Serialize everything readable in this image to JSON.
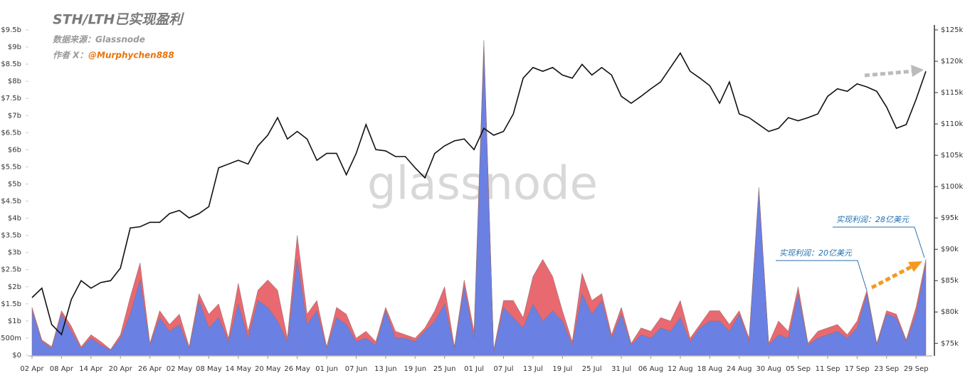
{
  "chart_data": {
    "type": "stacked-area-line",
    "title": "STH/LTH已实现盈利",
    "source": "数据来源：Glassnode",
    "author_label": "作者 X：",
    "author": "@Murphychen888",
    "watermark": "glassnode",
    "annotations": [
      "实现利润：20亿美元",
      "实现利润：28亿美元"
    ],
    "categories": [
      "02 Apr",
      null,
      null,
      "08 Apr",
      null,
      null,
      "14 Apr",
      null,
      null,
      "20 Apr",
      null,
      null,
      "26 Apr",
      null,
      null,
      "02 May",
      null,
      null,
      "08 May",
      null,
      null,
      "14 May",
      null,
      null,
      "20 May",
      null,
      null,
      "26 May",
      null,
      null,
      "01 Jun",
      null,
      null,
      "07 Jun",
      null,
      null,
      "13 Jun",
      null,
      null,
      "19 Jun",
      null,
      null,
      "25 Jun",
      null,
      null,
      "01 Jul",
      null,
      null,
      "07 Jul",
      null,
      null,
      "13 Jul",
      null,
      null,
      "19 Jul",
      null,
      null,
      "25 Jul",
      null,
      null,
      "31 Jul",
      null,
      null,
      "06 Aug",
      null,
      null,
      "12 Aug",
      null,
      null,
      "18 Aug",
      null,
      null,
      "24 Aug",
      null,
      null,
      "30 Aug",
      null,
      null,
      "05 Sep",
      null,
      null,
      "11 Sep",
      null,
      null,
      "17 Sep",
      null,
      null,
      "23 Sep",
      null,
      null,
      "29 Sep",
      null
    ],
    "series": [
      {
        "color": "#6b80e3",
        "values": [
          1.3,
          0.4,
          0.2,
          1.2,
          0.7,
          0.2,
          0.5,
          0.3,
          0.15,
          0.5,
          1.2,
          2.2,
          0.3,
          1.1,
          0.7,
          0.9,
          0.2,
          1.6,
          0.8,
          1.1,
          0.4,
          1.5,
          0.5,
          1.6,
          1.4,
          1.0,
          0.4,
          2.8,
          0.9,
          1.3,
          0.2,
          1.1,
          0.9,
          0.4,
          0.5,
          0.3,
          1.3,
          0.5,
          0.5,
          0.4,
          0.7,
          1.0,
          1.5,
          0.2,
          2.0,
          0.5,
          9.0,
          0.1,
          1.4,
          1.1,
          0.8,
          1.5,
          1.0,
          1.3,
          1.0,
          0.3,
          1.8,
          1.2,
          1.6,
          0.5,
          1.2,
          0.3,
          0.6,
          0.5,
          0.8,
          0.7,
          1.1,
          0.4,
          0.8,
          1.0,
          1.0,
          0.7,
          1.2,
          0.4,
          4.8,
          0.3,
          0.6,
          0.5,
          1.8,
          0.3,
          0.5,
          0.6,
          0.7,
          0.5,
          0.8,
          1.8,
          0.3,
          1.2,
          1.1,
          0.4,
          1.2,
          2.7
        ]
      },
      {
        "color": "#e8696f",
        "values": [
          0.1,
          0.05,
          0.05,
          0.1,
          0.15,
          0.05,
          0.1,
          0.1,
          0.02,
          0.1,
          0.5,
          0.5,
          0.05,
          0.2,
          0.2,
          0.3,
          0.05,
          0.2,
          0.4,
          0.4,
          0.1,
          0.6,
          0.2,
          0.3,
          0.8,
          0.9,
          0.1,
          0.7,
          0.3,
          0.3,
          0.05,
          0.3,
          0.3,
          0.1,
          0.2,
          0.1,
          0.1,
          0.2,
          0.1,
          0.1,
          0.1,
          0.3,
          0.5,
          0.05,
          0.2,
          0.2,
          0.2,
          0.05,
          0.2,
          0.5,
          0.3,
          0.8,
          1.8,
          1.0,
          0.3,
          0.1,
          0.6,
          0.4,
          0.2,
          0.1,
          0.2,
          0.05,
          0.2,
          0.2,
          0.3,
          0.3,
          0.5,
          0.1,
          0.1,
          0.3,
          0.3,
          0.2,
          0.1,
          0.1,
          0.1,
          0.05,
          0.4,
          0.2,
          0.2,
          0.05,
          0.2,
          0.2,
          0.2,
          0.1,
          0.2,
          0.1,
          0.05,
          0.1,
          0.1,
          0.05,
          0.2,
          0.1
        ]
      },
      {
        "color": "#111111",
        "axis": "y2",
        "values": [
          82.3,
          83.8,
          78,
          76.4,
          82,
          85,
          83.8,
          84.7,
          85,
          87,
          93.4,
          93.6,
          94.3,
          94.3,
          95.7,
          96.2,
          95,
          95.7,
          96.8,
          103,
          103.6,
          104.2,
          103.6,
          106.5,
          108.2,
          111,
          107.6,
          108.8,
          107.6,
          104.2,
          105.3,
          105.3,
          101.9,
          105.3,
          109.9,
          105.9,
          105.7,
          104.8,
          104.8,
          103,
          101.4,
          105.3,
          106.5,
          107.3,
          107.6,
          105.9,
          109.3,
          108.2,
          108.8,
          111.6,
          117.3,
          119,
          118.4,
          119,
          117.8,
          117.3,
          119.5,
          117.8,
          119,
          117.8,
          114.4,
          113.3,
          114.4,
          115.6,
          116.7,
          119,
          121.3,
          118.4,
          117.3,
          116.1,
          113.3,
          116.7,
          111.6,
          111,
          109.9,
          108.8,
          109.3,
          111,
          110.5,
          111,
          111.6,
          114.4,
          115.6,
          115.2,
          116.4,
          115.9,
          115.2,
          112.7,
          109.3,
          109.9,
          113.9,
          118.4
        ]
      }
    ],
    "ylim": [
      0,
      9.5
    ],
    "yticks": [
      {
        "value": 0,
        "label": "$0"
      },
      {
        "value": 0.5,
        "label": "$500m"
      },
      {
        "value": 1,
        "label": "$1b"
      },
      {
        "value": 1.5,
        "label": "$1.5b"
      },
      {
        "value": 2,
        "label": "$2b"
      },
      {
        "value": 2.5,
        "label": "$2.5b"
      },
      {
        "value": 3,
        "label": "$3b"
      },
      {
        "value": 3.5,
        "label": "$3.5b"
      },
      {
        "value": 4,
        "label": "$4b"
      },
      {
        "value": 4.5,
        "label": "$4.5b"
      },
      {
        "value": 5,
        "label": "$5b"
      },
      {
        "value": 5.5,
        "label": "$5.5b"
      },
      {
        "value": 6,
        "label": "$6b"
      },
      {
        "value": 6.5,
        "label": "$6.5b"
      },
      {
        "value": 7,
        "label": "$7b"
      },
      {
        "value": 7.5,
        "label": "$7.5b"
      },
      {
        "value": 8,
        "label": "$8b"
      },
      {
        "value": 8.5,
        "label": "$8.5b"
      },
      {
        "value": 9,
        "label": "$9b"
      },
      {
        "value": 9.5,
        "label": "$9.5b"
      }
    ],
    "y2lim": [
      73.1,
      125
    ],
    "y2ticks": [
      {
        "value": 75,
        "label": "$75k"
      },
      {
        "value": 80,
        "label": "$80k"
      },
      {
        "value": 85,
        "label": "$85k"
      },
      {
        "value": 90,
        "label": "$90k"
      },
      {
        "value": 95,
        "label": "$95k"
      },
      {
        "value": 100,
        "label": "$100k"
      },
      {
        "value": 105,
        "label": "$105k"
      },
      {
        "value": 110,
        "label": "$110k"
      },
      {
        "value": 115,
        "label": "$115k"
      },
      {
        "value": 120,
        "label": "$120k"
      },
      {
        "value": 125,
        "label": "$125k"
      }
    ],
    "grid": false
  }
}
